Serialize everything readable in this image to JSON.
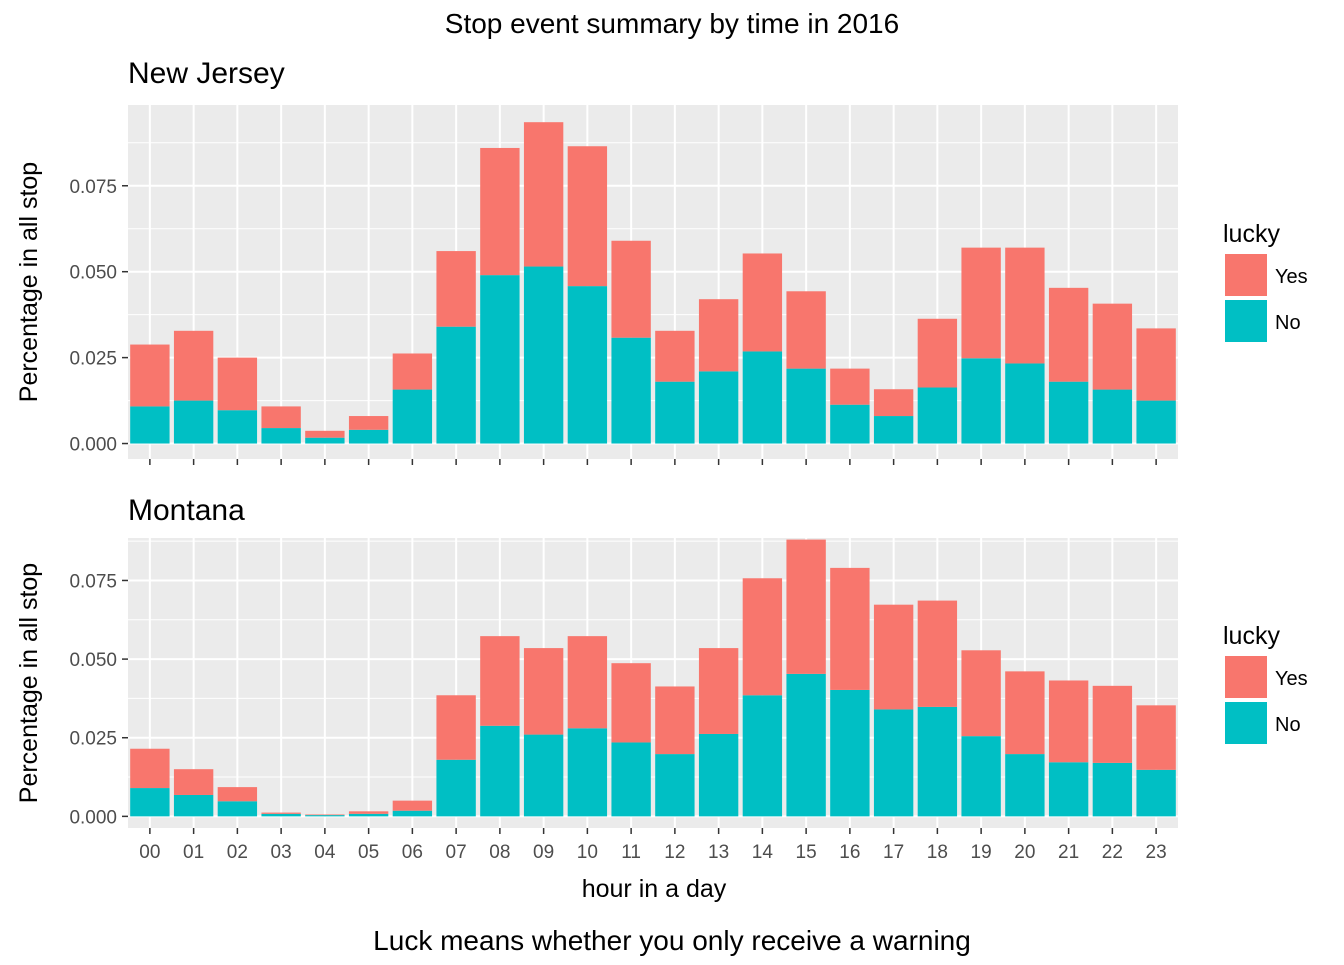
{
  "chart_data": {
    "type": "bar",
    "stacked": true,
    "title": "Stop event summary by time in 2016",
    "caption": "Luck means whether you only receive a warning",
    "xlabel": "hour in a day",
    "ylabel": "Percentage in all stop",
    "categories": [
      "00",
      "01",
      "02",
      "03",
      "04",
      "05",
      "06",
      "07",
      "08",
      "09",
      "10",
      "11",
      "12",
      "13",
      "14",
      "15",
      "16",
      "17",
      "18",
      "19",
      "20",
      "21",
      "22",
      "23"
    ],
    "y_ticks": [
      "0.000",
      "0.025",
      "0.050",
      "0.075"
    ],
    "legend": {
      "title": "lucky",
      "placement": "right",
      "entries": [
        {
          "label": "Yes",
          "color": "#F8766D"
        },
        {
          "label": "No",
          "color": "#00BFC4"
        }
      ]
    },
    "background": "#EBEBEB",
    "grid": true,
    "panels": [
      {
        "title": "New Jersey",
        "ylim": [
          -0.0045,
          0.0985
        ],
        "series": [
          {
            "name": "No",
            "color": "#00BFC4",
            "values": [
              0.0108,
              0.0125,
              0.0097,
              0.0045,
              0.0017,
              0.004,
              0.0157,
              0.034,
              0.049,
              0.0515,
              0.0458,
              0.0308,
              0.018,
              0.021,
              0.0268,
              0.0218,
              0.0113,
              0.008,
              0.0163,
              0.0248,
              0.0233,
              0.018,
              0.0157,
              0.0125
            ]
          },
          {
            "name": "Yes",
            "color": "#F8766D",
            "values": [
              0.018,
              0.0203,
              0.0153,
              0.0063,
              0.002,
              0.004,
              0.0105,
              0.022,
              0.037,
              0.042,
              0.0407,
              0.0282,
              0.0148,
              0.021,
              0.0285,
              0.0225,
              0.0105,
              0.0078,
              0.02,
              0.0322,
              0.0337,
              0.0273,
              0.025,
              0.021
            ]
          }
        ]
      },
      {
        "title": "Montana",
        "ylim": [
          -0.0037,
          0.0885
        ],
        "series": [
          {
            "name": "No",
            "color": "#00BFC4",
            "values": [
              0.009,
              0.0068,
              0.0048,
              0.0008,
              0.0004,
              0.0008,
              0.0018,
              0.018,
              0.0288,
              0.026,
              0.028,
              0.0235,
              0.0198,
              0.0262,
              0.0385,
              0.0453,
              0.0402,
              0.034,
              0.0348,
              0.0255,
              0.0198,
              0.0172,
              0.017,
              0.0148
            ]
          },
          {
            "name": "Yes",
            "color": "#F8766D",
            "values": [
              0.0125,
              0.0082,
              0.0045,
              0.0004,
              0.0002,
              0.0008,
              0.0032,
              0.0205,
              0.0285,
              0.0275,
              0.0293,
              0.0252,
              0.0215,
              0.0273,
              0.0372,
              0.0427,
              0.0388,
              0.0333,
              0.0338,
              0.0273,
              0.0263,
              0.026,
              0.0245,
              0.0205
            ]
          }
        ]
      }
    ]
  }
}
